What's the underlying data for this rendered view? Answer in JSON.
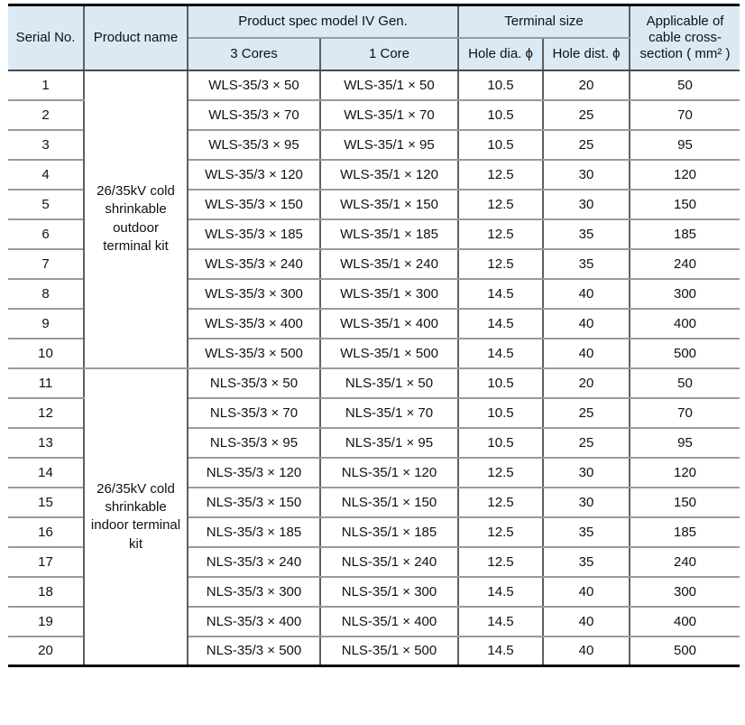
{
  "colors": {
    "header_bg": "#dbe9f5",
    "grid_vertical": "#5f5f5f",
    "grid_horizontal": "#9a9a9a",
    "header_rule": "#4a4a4a",
    "outer_rule": "#000000",
    "text": "#111111"
  },
  "table": {
    "headers": {
      "serial": "Serial No.",
      "product_name": "Product name",
      "spec_group": "Product spec model IV Gen.",
      "cores3": "3 Cores",
      "core1": "1 Core",
      "terminal_group": "Terminal size",
      "hole_dia": "Hole dia. ϕ",
      "hole_dist": "Hole dist. ϕ",
      "cross_section": "Applicable of cable cross-section ( mm² )"
    },
    "groups": [
      {
        "product_name": "26/35kV cold shrinkable outdoor terminal kit",
        "rows": [
          {
            "serial": "1",
            "cores3": "WLS-35/3 × 50",
            "core1": "WLS-35/1 × 50",
            "hole_dia": "10.5",
            "hole_dist": "20",
            "cross_section": "50"
          },
          {
            "serial": "2",
            "cores3": "WLS-35/3 × 70",
            "core1": "WLS-35/1 × 70",
            "hole_dia": "10.5",
            "hole_dist": "25",
            "cross_section": "70"
          },
          {
            "serial": "3",
            "cores3": "WLS-35/3 × 95",
            "core1": "WLS-35/1 × 95",
            "hole_dia": "10.5",
            "hole_dist": "25",
            "cross_section": "95"
          },
          {
            "serial": "4",
            "cores3": "WLS-35/3 × 120",
            "core1": "WLS-35/1 × 120",
            "hole_dia": "12.5",
            "hole_dist": "30",
            "cross_section": "120"
          },
          {
            "serial": "5",
            "cores3": "WLS-35/3 × 150",
            "core1": "WLS-35/1 × 150",
            "hole_dia": "12.5",
            "hole_dist": "30",
            "cross_section": "150"
          },
          {
            "serial": "6",
            "cores3": "WLS-35/3 × 185",
            "core1": "WLS-35/1 × 185",
            "hole_dia": "12.5",
            "hole_dist": "35",
            "cross_section": "185"
          },
          {
            "serial": "7",
            "cores3": "WLS-35/3 × 240",
            "core1": "WLS-35/1 × 240",
            "hole_dia": "12.5",
            "hole_dist": "35",
            "cross_section": "240"
          },
          {
            "serial": "8",
            "cores3": "WLS-35/3 × 300",
            "core1": "WLS-35/1 × 300",
            "hole_dia": "14.5",
            "hole_dist": "40",
            "cross_section": "300"
          },
          {
            "serial": "9",
            "cores3": "WLS-35/3 × 400",
            "core1": "WLS-35/1 × 400",
            "hole_dia": "14.5",
            "hole_dist": "40",
            "cross_section": "400"
          },
          {
            "serial": "10",
            "cores3": "WLS-35/3 × 500",
            "core1": "WLS-35/1 × 500",
            "hole_dia": "14.5",
            "hole_dist": "40",
            "cross_section": "500"
          }
        ]
      },
      {
        "product_name": "26/35kV cold shrinkable indoor terminal kit",
        "rows": [
          {
            "serial": "11",
            "cores3": "NLS-35/3 × 50",
            "core1": "NLS-35/1 × 50",
            "hole_dia": "10.5",
            "hole_dist": "20",
            "cross_section": "50"
          },
          {
            "serial": "12",
            "cores3": "NLS-35/3 × 70",
            "core1": "NLS-35/1 × 70",
            "hole_dia": "10.5",
            "hole_dist": "25",
            "cross_section": "70"
          },
          {
            "serial": "13",
            "cores3": "NLS-35/3 × 95",
            "core1": "NLS-35/1 × 95",
            "hole_dia": "10.5",
            "hole_dist": "25",
            "cross_section": "95"
          },
          {
            "serial": "14",
            "cores3": "NLS-35/3 × 120",
            "core1": "NLS-35/1 × 120",
            "hole_dia": "12.5",
            "hole_dist": "30",
            "cross_section": "120"
          },
          {
            "serial": "15",
            "cores3": "NLS-35/3 × 150",
            "core1": "NLS-35/1 × 150",
            "hole_dia": "12.5",
            "hole_dist": "30",
            "cross_section": "150"
          },
          {
            "serial": "16",
            "cores3": "NLS-35/3 × 185",
            "core1": "NLS-35/1 × 185",
            "hole_dia": "12.5",
            "hole_dist": "35",
            "cross_section": "185"
          },
          {
            "serial": "17",
            "cores3": "NLS-35/3 × 240",
            "core1": "NLS-35/1 × 240",
            "hole_dia": "12.5",
            "hole_dist": "35",
            "cross_section": "240"
          },
          {
            "serial": "18",
            "cores3": "NLS-35/3 × 300",
            "core1": "NLS-35/1 × 300",
            "hole_dia": "14.5",
            "hole_dist": "40",
            "cross_section": "300"
          },
          {
            "serial": "19",
            "cores3": "NLS-35/3 × 400",
            "core1": "NLS-35/1 × 400",
            "hole_dia": "14.5",
            "hole_dist": "40",
            "cross_section": "400"
          },
          {
            "serial": "20",
            "cores3": "NLS-35/3 × 500",
            "core1": "NLS-35/1 × 500",
            "hole_dia": "14.5",
            "hole_dist": "40",
            "cross_section": "500"
          }
        ]
      }
    ]
  }
}
